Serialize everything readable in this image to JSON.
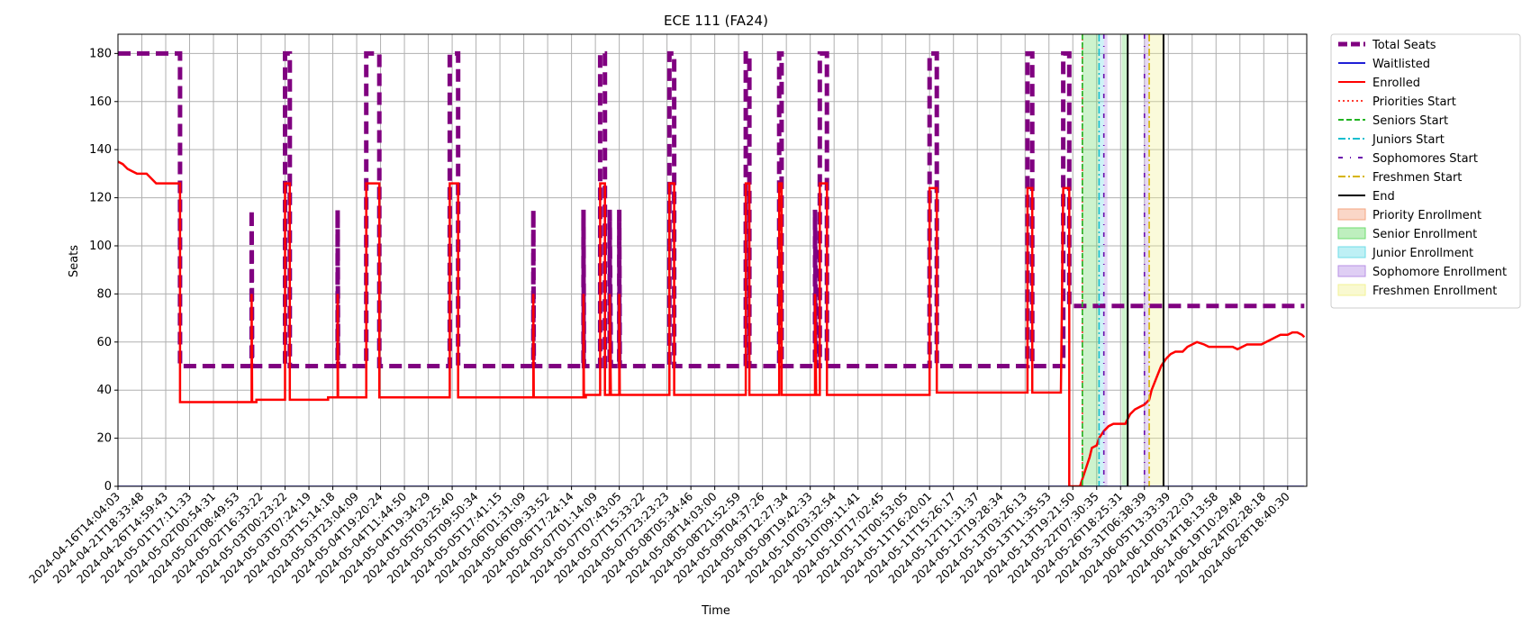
{
  "chart_data": {
    "type": "line",
    "title": "ECE 111 (FA24)",
    "xlabel": "Time",
    "ylabel": "Seats",
    "ylim": [
      0,
      188
    ],
    "y_ticks": [
      0,
      20,
      40,
      60,
      80,
      100,
      120,
      140,
      160,
      180
    ],
    "grid": true,
    "legend_position": "outside-right",
    "x_tick_labels": [
      "2024-04-16T14:04:03",
      "2024-04-21T18:33:48",
      "2024-04-26T14:59:43",
      "2024-05-01T17:11:33",
      "2024-05-02T00:54:31",
      "2024-05-02T08:49:53",
      "2024-05-02T16:33:22",
      "2024-05-03T00:23:22",
      "2024-05-03T07:24:19",
      "2024-05-03T15:14:18",
      "2024-05-03T23:04:09",
      "2024-05-04T19:20:24",
      "2024-05-04T11:44:50",
      "2024-05-04T19:34:29",
      "2024-05-05T03:25:40",
      "2024-05-05T09:50:34",
      "2024-05-05T17:41:15",
      "2024-05-06T01:31:09",
      "2024-05-06T09:33:52",
      "2024-05-06T17:24:14",
      "2024-05-07T01:14:09",
      "2024-05-07T07:43:05",
      "2024-05-07T15:33:22",
      "2024-05-07T23:23:23",
      "2024-05-08T05:34:46",
      "2024-05-08T14:03:00",
      "2024-05-08T21:52:59",
      "2024-05-09T04:37:26",
      "2024-05-09T12:27:34",
      "2024-05-09T19:42:33",
      "2024-05-10T03:32:54",
      "2024-05-10T09:11:41",
      "2024-05-10T17:02:45",
      "2024-05-11T00:53:05",
      "2024-05-11T16:20:01",
      "2024-05-11T15:26:17",
      "2024-05-12T11:31:37",
      "2024-05-12T19:28:34",
      "2024-05-13T03:26:13",
      "2024-05-13T11:35:53",
      "2024-05-13T19:21:50",
      "2024-05-22T07:30:35",
      "2024-05-26T18:25:31",
      "2024-05-31T06:38:39",
      "2024-06-05T13:33:39",
      "2024-06-10T03:22:03",
      "2024-06-14T18:13:58",
      "2024-06-19T10:29:48",
      "2024-06-24T02:28:18",
      "2024-06-28T18:40:30"
    ],
    "series": [
      {
        "name": "Total Seats",
        "color": "#800080",
        "style": "dashed-thick",
        "points": [
          [
            0,
            180
          ],
          [
            2.6,
            180
          ],
          [
            2.6,
            50
          ],
          [
            5.6,
            50
          ],
          [
            5.6,
            115
          ],
          [
            5.62,
            50
          ],
          [
            7.0,
            50
          ],
          [
            7.0,
            180
          ],
          [
            7.2,
            180
          ],
          [
            7.2,
            50
          ],
          [
            9.2,
            50
          ],
          [
            9.2,
            115
          ],
          [
            9.22,
            50
          ],
          [
            10.4,
            50
          ],
          [
            10.4,
            180
          ],
          [
            10.95,
            180
          ],
          [
            10.95,
            50
          ],
          [
            13.9,
            50
          ],
          [
            13.9,
            180
          ],
          [
            14.25,
            180
          ],
          [
            14.25,
            50
          ],
          [
            17.4,
            50
          ],
          [
            17.4,
            115
          ],
          [
            17.42,
            50
          ],
          [
            19.5,
            50
          ],
          [
            19.5,
            115
          ],
          [
            19.52,
            50
          ],
          [
            20.2,
            50
          ],
          [
            20.2,
            180
          ],
          [
            20.4,
            180
          ],
          [
            20.4,
            50
          ],
          [
            20.6,
            50
          ],
          [
            20.6,
            115
          ],
          [
            20.65,
            50
          ],
          [
            21.0,
            50
          ],
          [
            21.0,
            115
          ],
          [
            21.02,
            50
          ],
          [
            23.1,
            50
          ],
          [
            23.1,
            180
          ],
          [
            23.3,
            180
          ],
          [
            23.3,
            50
          ],
          [
            26.3,
            50
          ],
          [
            26.3,
            180
          ],
          [
            26.45,
            180
          ],
          [
            26.45,
            50
          ],
          [
            27.7,
            50
          ],
          [
            27.7,
            180
          ],
          [
            27.8,
            180
          ],
          [
            27.8,
            50
          ],
          [
            29.2,
            50
          ],
          [
            29.2,
            115
          ],
          [
            29.25,
            50
          ],
          [
            29.4,
            50
          ],
          [
            29.4,
            180
          ],
          [
            29.7,
            180
          ],
          [
            29.7,
            50
          ],
          [
            34.0,
            50
          ],
          [
            34.0,
            180
          ],
          [
            34.3,
            180
          ],
          [
            34.3,
            50
          ],
          [
            38.1,
            50
          ],
          [
            38.1,
            180
          ],
          [
            38.3,
            180
          ],
          [
            38.3,
            50
          ],
          [
            39.6,
            50
          ],
          [
            39.6,
            180
          ],
          [
            39.85,
            180
          ],
          [
            39.85,
            75
          ],
          [
            49.7,
            75
          ]
        ]
      },
      {
        "name": "Waitlisted",
        "color": "#1f1fd6",
        "style": "solid",
        "points": [
          [
            0,
            0
          ],
          [
            49.7,
            0
          ]
        ]
      },
      {
        "name": "Enrolled",
        "color": "#ff0000",
        "style": "solid",
        "points": [
          [
            0,
            135
          ],
          [
            0.2,
            134
          ],
          [
            0.4,
            132
          ],
          [
            0.6,
            131
          ],
          [
            0.8,
            130
          ],
          [
            1.2,
            130
          ],
          [
            1.4,
            128
          ],
          [
            1.6,
            126
          ],
          [
            2.6,
            126
          ],
          [
            2.6,
            35
          ],
          [
            5.6,
            35
          ],
          [
            5.6,
            80
          ],
          [
            5.62,
            35
          ],
          [
            5.8,
            35
          ],
          [
            5.8,
            36
          ],
          [
            7.0,
            36
          ],
          [
            7.0,
            126
          ],
          [
            7.2,
            126
          ],
          [
            7.2,
            36
          ],
          [
            8.8,
            36
          ],
          [
            8.8,
            37
          ],
          [
            9.2,
            37
          ],
          [
            9.2,
            80
          ],
          [
            9.22,
            37
          ],
          [
            10.4,
            37
          ],
          [
            10.4,
            126
          ],
          [
            10.95,
            126
          ],
          [
            10.95,
            37
          ],
          [
            13.9,
            37
          ],
          [
            13.9,
            126
          ],
          [
            14.25,
            126
          ],
          [
            14.25,
            37
          ],
          [
            17.4,
            37
          ],
          [
            17.4,
            80
          ],
          [
            17.42,
            37
          ],
          [
            19.5,
            37
          ],
          [
            19.5,
            80
          ],
          [
            19.52,
            37
          ],
          [
            19.6,
            37
          ],
          [
            19.6,
            38
          ],
          [
            20.0,
            38
          ],
          [
            20.2,
            38
          ],
          [
            20.2,
            126
          ],
          [
            20.4,
            126
          ],
          [
            20.4,
            38
          ],
          [
            20.6,
            38
          ],
          [
            20.6,
            80
          ],
          [
            20.65,
            38
          ],
          [
            21.0,
            38
          ],
          [
            21.0,
            80
          ],
          [
            21.02,
            38
          ],
          [
            23.1,
            38
          ],
          [
            23.1,
            126
          ],
          [
            23.3,
            126
          ],
          [
            23.3,
            38
          ],
          [
            26.3,
            38
          ],
          [
            26.3,
            126
          ],
          [
            26.45,
            126
          ],
          [
            26.45,
            38
          ],
          [
            27.7,
            38
          ],
          [
            27.7,
            126
          ],
          [
            27.8,
            126
          ],
          [
            27.8,
            38
          ],
          [
            29.2,
            38
          ],
          [
            29.2,
            80
          ],
          [
            29.25,
            38
          ],
          [
            29.4,
            38
          ],
          [
            29.4,
            126
          ],
          [
            29.7,
            126
          ],
          [
            29.7,
            38
          ],
          [
            34.0,
            38
          ],
          [
            34.0,
            39
          ],
          [
            34.0,
            124
          ],
          [
            34.3,
            124
          ],
          [
            34.3,
            39
          ],
          [
            38.1,
            39
          ],
          [
            38.1,
            124
          ],
          [
            38.3,
            124
          ],
          [
            38.3,
            39
          ],
          [
            39.5,
            39
          ],
          [
            39.6,
            124
          ],
          [
            39.85,
            124
          ],
          [
            39.85,
            0
          ],
          [
            40.3,
            0
          ],
          [
            40.4,
            3
          ],
          [
            40.5,
            6
          ],
          [
            40.7,
            12
          ],
          [
            40.8,
            16
          ],
          [
            41.0,
            17
          ],
          [
            41.1,
            20
          ],
          [
            41.3,
            23
          ],
          [
            41.5,
            25
          ],
          [
            41.7,
            26
          ],
          [
            42.2,
            26
          ],
          [
            42.3,
            28
          ],
          [
            42.4,
            30
          ],
          [
            42.6,
            32
          ],
          [
            42.8,
            33
          ],
          [
            43.0,
            34
          ],
          [
            43.2,
            36
          ],
          [
            43.3,
            40
          ],
          [
            43.5,
            45
          ],
          [
            43.7,
            50
          ],
          [
            43.9,
            53
          ],
          [
            44.1,
            55
          ],
          [
            44.3,
            56
          ],
          [
            44.6,
            56
          ],
          [
            44.8,
            58
          ],
          [
            45.0,
            59
          ],
          [
            45.2,
            60
          ],
          [
            45.5,
            59
          ],
          [
            45.7,
            58
          ],
          [
            46.7,
            58
          ],
          [
            46.9,
            57
          ],
          [
            47.1,
            58
          ],
          [
            47.3,
            59
          ],
          [
            47.9,
            59
          ],
          [
            48.1,
            60
          ],
          [
            48.3,
            61
          ],
          [
            48.5,
            62
          ],
          [
            48.7,
            63
          ],
          [
            49.0,
            63
          ],
          [
            49.2,
            64
          ],
          [
            49.4,
            64
          ],
          [
            49.6,
            63
          ],
          [
            49.7,
            62
          ]
        ]
      }
    ],
    "vertical_markers": [
      {
        "name": "Priorities Start",
        "color": "#ff3b30",
        "style": "dotted",
        "x": 40.4
      },
      {
        "name": "Seniors Start",
        "color": "#22b422",
        "style": "dashed",
        "x": 40.4
      },
      {
        "name": "Juniors Start",
        "color": "#17becf",
        "style": "dashdot",
        "x": 41.1
      },
      {
        "name": "Sophomores Start",
        "color": "#6a0dad",
        "style": "dashdot-sparse",
        "x": 41.3
      },
      {
        "name": "Sophomores Start",
        "color": "#6a0dad",
        "style": "dashdot-sparse",
        "x": 43.0
      },
      {
        "name": "Freshmen Start",
        "color": "#d6b400",
        "style": "dashdot",
        "x": 43.2
      },
      {
        "name": "End",
        "color": "#000000",
        "style": "solid",
        "x": 42.3
      },
      {
        "name": "End",
        "color": "#000000",
        "style": "solid",
        "x": 43.8
      }
    ],
    "shaded_regions": [
      {
        "name": "Senior Enrollment",
        "color": "#6fdc6f",
        "x0": 40.4,
        "x1": 41.1
      },
      {
        "name": "Junior Enrollment",
        "color": "#6fdde8",
        "x0": 41.1,
        "x1": 41.3
      },
      {
        "name": "Sophomore Enrollment",
        "color": "#b892e6",
        "x0": 41.3,
        "x1": 41.45
      },
      {
        "name": "Senior Enrollment",
        "color": "#6fdc6f",
        "x0": 42.05,
        "x1": 42.3
      },
      {
        "name": "Sophomore Enrollment",
        "color": "#b892e6",
        "x0": 43.0,
        "x1": 43.2
      },
      {
        "name": "Freshmen Enrollment",
        "color": "#f2f296",
        "x0": 43.2,
        "x1": 43.8
      }
    ],
    "legend": [
      {
        "label": "Total Seats",
        "kind": "line",
        "color": "#800080",
        "style": "dashed-thick"
      },
      {
        "label": "Waitlisted",
        "kind": "line",
        "color": "#1f1fd6",
        "style": "solid"
      },
      {
        "label": "Enrolled",
        "kind": "line",
        "color": "#ff0000",
        "style": "solid"
      },
      {
        "label": "Priorities Start",
        "kind": "line",
        "color": "#ff3b30",
        "style": "dotted"
      },
      {
        "label": "Seniors Start",
        "kind": "line",
        "color": "#22b422",
        "style": "dashed"
      },
      {
        "label": "Juniors Start",
        "kind": "line",
        "color": "#17becf",
        "style": "dashdot"
      },
      {
        "label": "Sophomores Start",
        "kind": "line",
        "color": "#6a0dad",
        "style": "dashdot-sparse"
      },
      {
        "label": "Freshmen Start",
        "kind": "line",
        "color": "#d6b400",
        "style": "dashdot"
      },
      {
        "label": "End",
        "kind": "line",
        "color": "#000000",
        "style": "solid"
      },
      {
        "label": "Priority Enrollment",
        "kind": "patch",
        "color": "#f4a582"
      },
      {
        "label": "Senior Enrollment",
        "kind": "patch",
        "color": "#6fdc6f"
      },
      {
        "label": "Junior Enrollment",
        "kind": "patch",
        "color": "#6fdde8"
      },
      {
        "label": "Sophomore Enrollment",
        "kind": "patch",
        "color": "#b892e6"
      },
      {
        "label": "Freshmen Enrollment",
        "kind": "patch",
        "color": "#f2f296"
      }
    ]
  }
}
